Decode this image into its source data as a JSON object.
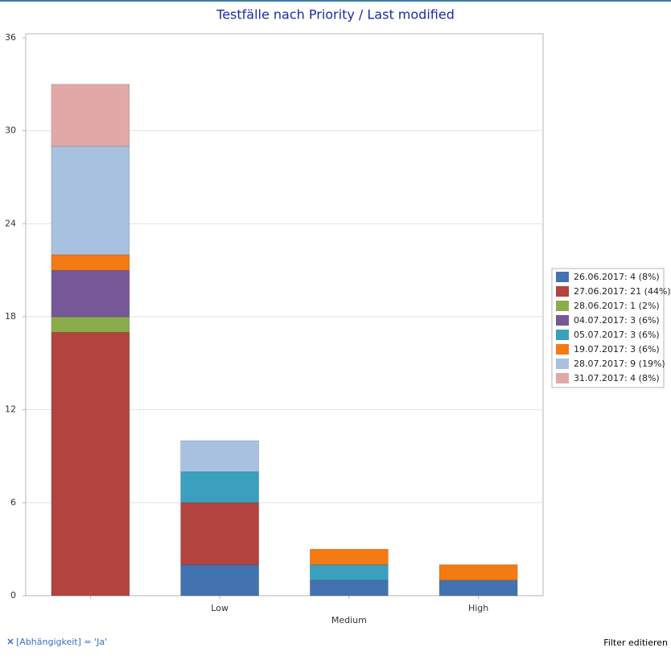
{
  "chart_data": {
    "type": "stacked_bar",
    "title": "Testfälle nach Priority / Last modified",
    "categories": [
      null,
      "Low",
      "Medium",
      "High"
    ],
    "series": [
      {
        "name": "26.06.2017: 4 (8%)",
        "color": "#4372b0",
        "values": [
          0,
          2,
          1,
          1
        ]
      },
      {
        "name": "27.06.2017: 21 (44%)",
        "color": "#b3433f",
        "values": [
          17,
          4,
          0,
          0
        ]
      },
      {
        "name": "28.06.2017: 1 (2%)",
        "color": "#8aac4b",
        "values": [
          1,
          0,
          0,
          0
        ]
      },
      {
        "name": "04.07.2017: 3 (6%)",
        "color": "#765797",
        "values": [
          3,
          0,
          0,
          0
        ]
      },
      {
        "name": "05.07.2017: 3 (6%)",
        "color": "#3aa0be",
        "values": [
          0,
          2,
          1,
          0
        ]
      },
      {
        "name": "19.07.2017: 3 (6%)",
        "color": "#f47a12",
        "values": [
          1,
          0,
          1,
          1
        ]
      },
      {
        "name": "28.07.2017: 9 (19%)",
        "color": "#a9c1e1",
        "values": [
          7,
          2,
          0,
          0
        ]
      },
      {
        "name": "31.07.2017: 4 (8%)",
        "color": "#e0a9a8",
        "values": [
          4,
          0,
          0,
          0
        ]
      }
    ],
    "ylim": [
      0,
      36
    ],
    "yticks": [
      0,
      6,
      12,
      18,
      24,
      30,
      36
    ],
    "grid": true,
    "legend": "right"
  },
  "footer": {
    "filter": "[Abhängigkeit] = 'Ja'",
    "button": "Filter editieren"
  }
}
